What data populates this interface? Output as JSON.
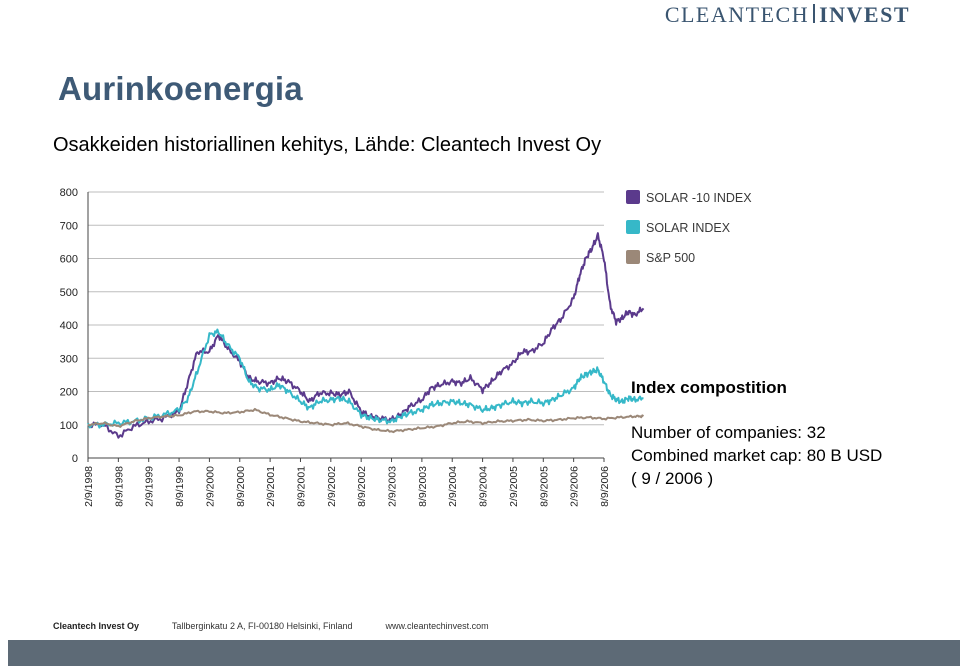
{
  "logo": {
    "part1": "CLEANTECH",
    "part2": "INVEST"
  },
  "title": "Aurinkoenergia",
  "subtitle": "Osakkeiden historiallinen kehitys, Lähde: Cleantech Invest Oy",
  "chart_data": {
    "type": "line",
    "ylim": [
      0,
      800
    ],
    "yticks": [
      "0",
      "100",
      "200",
      "300",
      "400",
      "500",
      "600",
      "700",
      "800"
    ],
    "xticks": [
      "2/9/1998",
      "8/9/1998",
      "2/9/1999",
      "8/9/1999",
      "2/9/2000",
      "8/9/2000",
      "2/9/2001",
      "8/9/2001",
      "2/9/2002",
      "8/9/2002",
      "2/9/2003",
      "8/9/2003",
      "2/9/2004",
      "8/9/2004",
      "2/9/2005",
      "8/9/2005",
      "2/9/2006",
      "8/9/2006"
    ],
    "series": [
      {
        "name": "SOLAR -10 INDEX",
        "color": "#5b3a8c",
        "values": [
          [
            0,
            100
          ],
          [
            0.5,
            100
          ],
          [
            1,
            65
          ],
          [
            1.5,
            95
          ],
          [
            2,
            110
          ],
          [
            2.5,
            120
          ],
          [
            3,
            140
          ],
          [
            3.3,
            230
          ],
          [
            3.6,
            320
          ],
          [
            4,
            320
          ],
          [
            4.3,
            370
          ],
          [
            4.6,
            330
          ],
          [
            5,
            290
          ],
          [
            5.3,
            240
          ],
          [
            5.6,
            230
          ],
          [
            6,
            225
          ],
          [
            6.3,
            240
          ],
          [
            6.6,
            230
          ],
          [
            7,
            200
          ],
          [
            7.3,
            170
          ],
          [
            7.6,
            195
          ],
          [
            8,
            195
          ],
          [
            8.3,
            190
          ],
          [
            8.6,
            200
          ],
          [
            9,
            140
          ],
          [
            9.3,
            125
          ],
          [
            9.6,
            120
          ],
          [
            10,
            115
          ],
          [
            10.3,
            130
          ],
          [
            10.6,
            155
          ],
          [
            11,
            175
          ],
          [
            11.3,
            210
          ],
          [
            11.6,
            220
          ],
          [
            12,
            230
          ],
          [
            12.3,
            225
          ],
          [
            12.6,
            240
          ],
          [
            13,
            205
          ],
          [
            13.3,
            230
          ],
          [
            13.6,
            260
          ],
          [
            14,
            285
          ],
          [
            14.3,
            320
          ],
          [
            14.6,
            320
          ],
          [
            15,
            345
          ],
          [
            15.3,
            390
          ],
          [
            15.6,
            420
          ],
          [
            16,
            480
          ],
          [
            16.2,
            550
          ],
          [
            16.4,
            600
          ],
          [
            16.6,
            630
          ],
          [
            16.8,
            670
          ],
          [
            17,
            600
          ],
          [
            17.2,
            460
          ],
          [
            17.4,
            410
          ],
          [
            17.6,
            420
          ],
          [
            17.8,
            440
          ],
          [
            18,
            430
          ],
          [
            18.3,
            450
          ]
        ]
      },
      {
        "name": "SOLAR INDEX",
        "color": "#36b8c8",
        "values": [
          [
            0,
            100
          ],
          [
            0.5,
            100
          ],
          [
            1,
            105
          ],
          [
            1.5,
            110
          ],
          [
            2,
            120
          ],
          [
            2.5,
            130
          ],
          [
            3,
            145
          ],
          [
            3.3,
            180
          ],
          [
            3.6,
            260
          ],
          [
            4,
            370
          ],
          [
            4.3,
            380
          ],
          [
            4.6,
            340
          ],
          [
            5,
            300
          ],
          [
            5.3,
            230
          ],
          [
            5.6,
            210
          ],
          [
            6,
            205
          ],
          [
            6.3,
            220
          ],
          [
            6.6,
            200
          ],
          [
            7,
            170
          ],
          [
            7.3,
            150
          ],
          [
            7.6,
            170
          ],
          [
            8,
            175
          ],
          [
            8.3,
            180
          ],
          [
            8.6,
            170
          ],
          [
            9,
            130
          ],
          [
            9.3,
            120
          ],
          [
            9.6,
            115
          ],
          [
            10,
            110
          ],
          [
            10.3,
            125
          ],
          [
            10.6,
            135
          ],
          [
            11,
            145
          ],
          [
            11.3,
            160
          ],
          [
            11.6,
            165
          ],
          [
            12,
            170
          ],
          [
            12.3,
            165
          ],
          [
            12.6,
            160
          ],
          [
            13,
            145
          ],
          [
            13.3,
            150
          ],
          [
            13.6,
            160
          ],
          [
            14,
            170
          ],
          [
            14.3,
            165
          ],
          [
            14.6,
            170
          ],
          [
            15,
            165
          ],
          [
            15.3,
            175
          ],
          [
            15.6,
            190
          ],
          [
            16,
            210
          ],
          [
            16.2,
            240
          ],
          [
            16.4,
            250
          ],
          [
            16.6,
            260
          ],
          [
            16.8,
            265
          ],
          [
            17,
            230
          ],
          [
            17.2,
            190
          ],
          [
            17.4,
            175
          ],
          [
            17.6,
            170
          ],
          [
            17.8,
            180
          ],
          [
            18,
            175
          ],
          [
            18.3,
            180
          ]
        ]
      },
      {
        "name": "S&P 500",
        "color": "#9b8878",
        "values": [
          [
            0,
            100
          ],
          [
            0.5,
            105
          ],
          [
            1,
            95
          ],
          [
            1.5,
            110
          ],
          [
            2,
            120
          ],
          [
            2.5,
            125
          ],
          [
            3,
            128
          ],
          [
            3.5,
            140
          ],
          [
            4,
            140
          ],
          [
            4.5,
            135
          ],
          [
            5,
            138
          ],
          [
            5.5,
            145
          ],
          [
            6,
            130
          ],
          [
            6.5,
            120
          ],
          [
            7,
            110
          ],
          [
            7.5,
            105
          ],
          [
            8,
            100
          ],
          [
            8.5,
            105
          ],
          [
            9,
            95
          ],
          [
            9.5,
            85
          ],
          [
            10,
            80
          ],
          [
            10.5,
            85
          ],
          [
            11,
            90
          ],
          [
            11.5,
            95
          ],
          [
            12,
            105
          ],
          [
            12.5,
            110
          ],
          [
            13,
            105
          ],
          [
            13.5,
            110
          ],
          [
            14,
            112
          ],
          [
            14.5,
            115
          ],
          [
            15,
            112
          ],
          [
            15.5,
            115
          ],
          [
            16,
            120
          ],
          [
            16.5,
            122
          ],
          [
            17,
            118
          ],
          [
            17.5,
            122
          ],
          [
            18,
            125
          ],
          [
            18.3,
            126
          ]
        ]
      }
    ]
  },
  "side": {
    "heading": "Index compostition",
    "line1": "Number of companies: 32",
    "line2": "Combined market cap: 80 B USD",
    "line3": "( 9 / 2006 )"
  },
  "footer": {
    "company": "Cleantech Invest Oy",
    "address": "Tallberginkatu 2 A, FI-00180 Helsinki, Finland",
    "web": "www.cleantechinvest.com"
  }
}
